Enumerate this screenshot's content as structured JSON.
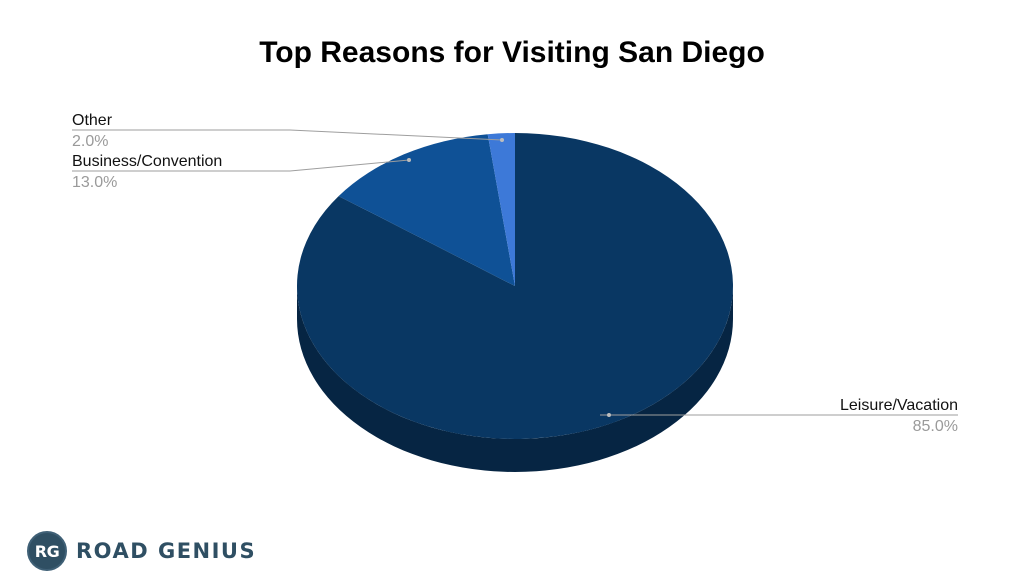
{
  "chart_data": {
    "type": "pie",
    "title": "Top Reasons for Visiting San Diego",
    "slices": [
      {
        "label": "Leisure/Vacation",
        "value": 85.0,
        "display": "85.0%",
        "color": "#093763"
      },
      {
        "label": "Business/Convention",
        "value": 13.0,
        "display": "13.0%",
        "color": "#0f5196"
      },
      {
        "label": "Other",
        "value": 2.0,
        "display": "2.0%",
        "color": "#3d79d8"
      }
    ],
    "legend": "callout-labels",
    "style": "3d"
  },
  "brand": {
    "badge": "RG",
    "name": "ROAD GENIUS"
  }
}
